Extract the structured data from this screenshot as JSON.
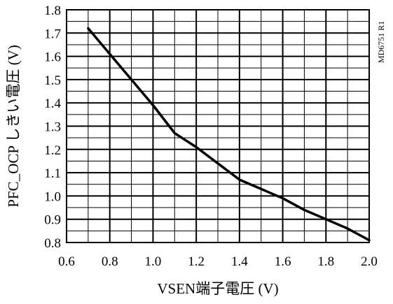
{
  "chart_data": {
    "type": "line",
    "title": "",
    "xlabel": "VSEN端子電圧 (V)",
    "ylabel": "PFC_OCP しきい電圧 (V)",
    "xlim": [
      0.6,
      2.0
    ],
    "ylim": [
      0.8,
      1.8
    ],
    "x_ticks": [
      "0.6",
      "0.8",
      "1.0",
      "1.2",
      "1.4",
      "1.6",
      "1.8",
      "2.0"
    ],
    "y_ticks": [
      "0.8",
      "0.9",
      "1.0",
      "1.1",
      "1.2",
      "1.3",
      "1.4",
      "1.5",
      "1.6",
      "1.7",
      "1.8"
    ],
    "grid": true,
    "series": [
      {
        "x": [
          0.7,
          0.8,
          0.9,
          1.0,
          1.1,
          1.2,
          1.3,
          1.4,
          1.5,
          1.6,
          1.7,
          1.8,
          1.9,
          2.0
        ],
        "y": [
          1.72,
          1.61,
          1.5,
          1.39,
          1.27,
          1.21,
          1.14,
          1.07,
          1.03,
          0.99,
          0.94,
          0.9,
          0.86,
          0.81
        ],
        "color": "#000000"
      }
    ],
    "annotation": "MD6751 R1"
  }
}
